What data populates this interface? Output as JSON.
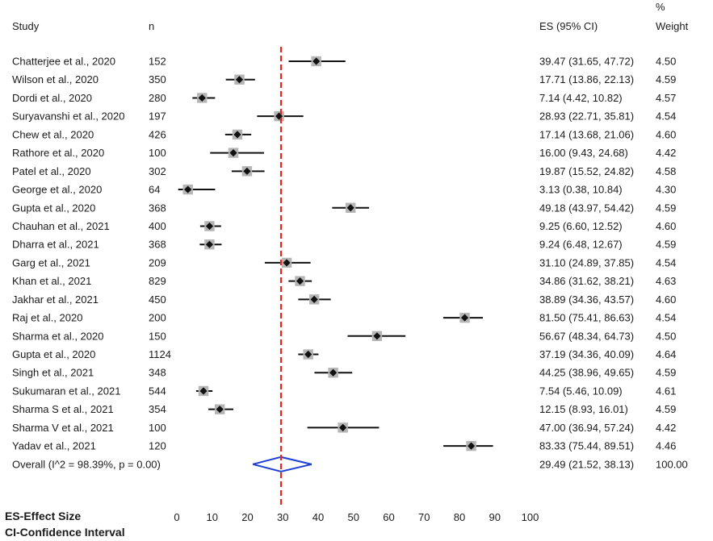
{
  "chart_data": {
    "type": "forest",
    "headers": {
      "study": "Study",
      "n": "n",
      "es": "ES (95% CI)",
      "weight_top": "%",
      "weight": "Weight"
    },
    "studies": [
      {
        "label": "Chatterjee et al., 2020",
        "n": "152",
        "es": 39.47,
        "lo": 31.65,
        "hi": 47.72,
        "ci_text": "39.47 (31.65, 47.72)",
        "weight": "4.50"
      },
      {
        "label": "Wilson et al., 2020",
        "n": "350",
        "es": 17.71,
        "lo": 13.86,
        "hi": 22.13,
        "ci_text": "17.71 (13.86, 22.13)",
        "weight": "4.59"
      },
      {
        "label": "Dordi et al., 2020",
        "n": "280",
        "es": 7.14,
        "lo": 4.42,
        "hi": 10.82,
        "ci_text": "7.14 (4.42, 10.82)",
        "weight": "4.57"
      },
      {
        "label": "Suryavanshi et al., 2020",
        "n": "197",
        "es": 28.93,
        "lo": 22.71,
        "hi": 35.81,
        "ci_text": "28.93 (22.71, 35.81)",
        "weight": "4.54"
      },
      {
        "label": "Chew et al., 2020",
        "n": "426",
        "es": 17.14,
        "lo": 13.68,
        "hi": 21.06,
        "ci_text": "17.14 (13.68, 21.06)",
        "weight": "4.60"
      },
      {
        "label": "Rathore et al., 2020",
        "n": "100",
        "es": 16.0,
        "lo": 9.43,
        "hi": 24.68,
        "ci_text": "16.00 (9.43, 24.68)",
        "weight": "4.42"
      },
      {
        "label": "Patel et al., 2020",
        "n": "302",
        "es": 19.87,
        "lo": 15.52,
        "hi": 24.82,
        "ci_text": "19.87 (15.52, 24.82)",
        "weight": "4.58"
      },
      {
        "label": "George et al., 2020",
        "n": "64",
        "es": 3.13,
        "lo": 0.38,
        "hi": 10.84,
        "ci_text": "3.13 (0.38, 10.84)",
        "weight": "4.30"
      },
      {
        "label": "Gupta et al., 2020",
        "n": "368",
        "es": 49.18,
        "lo": 43.97,
        "hi": 54.42,
        "ci_text": "49.18 (43.97, 54.42)",
        "weight": "4.59"
      },
      {
        "label": "Chauhan et al., 2021",
        "n": "400",
        "es": 9.25,
        "lo": 6.6,
        "hi": 12.52,
        "ci_text": "9.25 (6.60, 12.52)",
        "weight": "4.60"
      },
      {
        "label": "Dharra et al., 2021",
        "n": "368",
        "es": 9.24,
        "lo": 6.48,
        "hi": 12.67,
        "ci_text": "9.24 (6.48, 12.67)",
        "weight": "4.59"
      },
      {
        "label": "Garg et al., 2021",
        "n": "209",
        "es": 31.1,
        "lo": 24.89,
        "hi": 37.85,
        "ci_text": "31.10 (24.89, 37.85)",
        "weight": "4.54"
      },
      {
        "label": "Khan et al., 2021",
        "n": "829",
        "es": 34.86,
        "lo": 31.62,
        "hi": 38.21,
        "ci_text": "34.86 (31.62, 38.21)",
        "weight": "4.63"
      },
      {
        "label": "Jakhar et al., 2021",
        "n": "450",
        "es": 38.89,
        "lo": 34.36,
        "hi": 43.57,
        "ci_text": "38.89 (34.36, 43.57)",
        "weight": "4.60"
      },
      {
        "label": "Raj et al., 2020",
        "n": "200",
        "es": 81.5,
        "lo": 75.41,
        "hi": 86.63,
        "ci_text": "81.50 (75.41, 86.63)",
        "weight": "4.54"
      },
      {
        "label": "Sharma et al., 2020",
        "n": "150",
        "es": 56.67,
        "lo": 48.34,
        "hi": 64.73,
        "ci_text": "56.67 (48.34, 64.73)",
        "weight": "4.50"
      },
      {
        "label": "Gupta et al., 2020",
        "n": "1124",
        "es": 37.19,
        "lo": 34.36,
        "hi": 40.09,
        "ci_text": "37.19 (34.36, 40.09)",
        "weight": "4.64"
      },
      {
        "label": "Singh et al., 2021",
        "n": "348",
        "es": 44.25,
        "lo": 38.96,
        "hi": 49.65,
        "ci_text": "44.25 (38.96, 49.65)",
        "weight": "4.59"
      },
      {
        "label": "Sukumaran et al., 2021",
        "n": "544",
        "es": 7.54,
        "lo": 5.46,
        "hi": 10.09,
        "ci_text": "7.54 (5.46, 10.09)",
        "weight": "4.61"
      },
      {
        "label": "Sharma S et al., 2021",
        "n": "354",
        "es": 12.15,
        "lo": 8.93,
        "hi": 16.01,
        "ci_text": "12.15 (8.93, 16.01)",
        "weight": "4.59"
      },
      {
        "label": "Sharma V et al., 2021",
        "n": "100",
        "es": 47.0,
        "lo": 36.94,
        "hi": 57.24,
        "ci_text": "47.00 (36.94, 57.24)",
        "weight": "4.42"
      },
      {
        "label": "Yadav et al., 2021",
        "n": "120",
        "es": 83.33,
        "lo": 75.44,
        "hi": 89.51,
        "ci_text": "83.33 (75.44, 89.51)",
        "weight": "4.46"
      }
    ],
    "overall": {
      "label": "Overall  (I^2 = 98.39%, p = 0.00)",
      "es": 29.49,
      "lo": 21.52,
      "hi": 38.13,
      "ci_text": "29.49 (21.52, 38.13)",
      "weight": "100.00"
    },
    "reference_line": 29.49,
    "xlim": [
      0,
      100
    ],
    "xticks": [
      0,
      10,
      20,
      30,
      40,
      50,
      60,
      70,
      80,
      90,
      100
    ],
    "footnotes": [
      "ES-Effect Size",
      "CI-Confidence Interval"
    ],
    "colors": {
      "marker": "#111111",
      "marker_box": "#b5b5b5",
      "ci_line": "#111111",
      "reference_line": "#e8261c",
      "diamond": "#1f3fd6",
      "text": "#1a1a1a"
    }
  }
}
